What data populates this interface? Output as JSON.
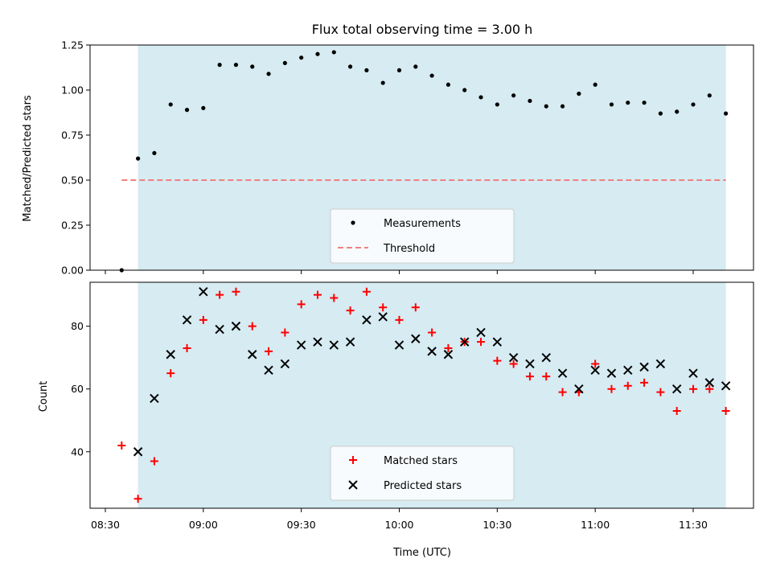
{
  "chart_data": {
    "title": "Flux total observing time = 3.00 h",
    "xlabel": "Time (UTC)",
    "x_ticks": [
      "08:30",
      "09:00",
      "09:30",
      "10:00",
      "10:30",
      "11:00",
      "11:30"
    ],
    "observing_window": {
      "start": "08:40",
      "end": "11:40",
      "color": "#add8e6"
    },
    "panels": [
      {
        "type": "scatter",
        "ylabel": "Matched/Predicted stars",
        "ylim": [
          0,
          1.25
        ],
        "y_ticks": [
          "0.00",
          "0.25",
          "0.50",
          "0.75",
          "1.00",
          "1.25"
        ],
        "legend": "bottom-center",
        "series": [
          {
            "name": "Measurements",
            "marker": "dot",
            "color": "#000000",
            "x": [
              "08:35",
              "08:40",
              "08:45",
              "08:50",
              "08:55",
              "09:00",
              "09:05",
              "09:10",
              "09:15",
              "09:20",
              "09:25",
              "09:30",
              "09:35",
              "09:40",
              "09:45",
              "09:50",
              "09:55",
              "10:00",
              "10:05",
              "10:10",
              "10:15",
              "10:20",
              "10:25",
              "10:30",
              "10:35",
              "10:40",
              "10:45",
              "10:50",
              "10:55",
              "11:00",
              "11:05",
              "11:10",
              "11:15",
              "11:20",
              "11:25",
              "11:30",
              "11:35",
              "11:40"
            ],
            "y": [
              0.0,
              0.62,
              0.65,
              0.92,
              0.89,
              0.9,
              1.14,
              1.14,
              1.13,
              1.09,
              1.15,
              1.18,
              1.2,
              1.21,
              1.13,
              1.11,
              1.04,
              1.11,
              1.13,
              1.08,
              1.03,
              1.0,
              0.96,
              0.92,
              0.97,
              0.94,
              0.91,
              0.91,
              0.98,
              1.03,
              0.92,
              0.93,
              0.93,
              0.87,
              0.88,
              0.92,
              0.97,
              0.87
            ]
          },
          {
            "name": "Threshold",
            "marker": "dashed-line",
            "color": "#f08080",
            "x": [
              "08:35",
              "11:40"
            ],
            "y": [
              0.5,
              0.5
            ]
          }
        ]
      },
      {
        "type": "scatter",
        "ylabel": "Count",
        "ylim": [
          22,
          94
        ],
        "y_ticks": [
          "40",
          "60",
          "80"
        ],
        "legend": "bottom-center",
        "series": [
          {
            "name": "Matched stars",
            "marker": "plus",
            "color": "#ff0000",
            "x": [
              "08:35",
              "08:40",
              "08:45",
              "08:50",
              "08:55",
              "09:00",
              "09:05",
              "09:10",
              "09:15",
              "09:20",
              "09:25",
              "09:30",
              "09:35",
              "09:40",
              "09:45",
              "09:50",
              "09:55",
              "10:00",
              "10:05",
              "10:10",
              "10:15",
              "10:20",
              "10:25",
              "10:30",
              "10:35",
              "10:40",
              "10:45",
              "10:50",
              "10:55",
              "11:00",
              "11:05",
              "11:10",
              "11:15",
              "11:20",
              "11:25",
              "11:30",
              "11:35",
              "11:40"
            ],
            "y": [
              42,
              25,
              37,
              65,
              73,
              82,
              90,
              91,
              80,
              72,
              78,
              87,
              90,
              89,
              85,
              91,
              86,
              82,
              86,
              78,
              73,
              75,
              75,
              69,
              68,
              64,
              64,
              59,
              59,
              68,
              60,
              61,
              62,
              59,
              53,
              60,
              60,
              53
            ]
          },
          {
            "name": "Predicted stars",
            "marker": "x",
            "color": "#000000",
            "x": [
              "08:40",
              "08:45",
              "08:50",
              "08:55",
              "09:00",
              "09:05",
              "09:10",
              "09:15",
              "09:20",
              "09:25",
              "09:30",
              "09:35",
              "09:40",
              "09:45",
              "09:50",
              "09:55",
              "10:00",
              "10:05",
              "10:10",
              "10:15",
              "10:20",
              "10:25",
              "10:30",
              "10:35",
              "10:40",
              "10:45",
              "10:50",
              "10:55",
              "11:00",
              "11:05",
              "11:10",
              "11:15",
              "11:20",
              "11:25",
              "11:30",
              "11:35",
              "11:40"
            ],
            "y": [
              40,
              57,
              71,
              82,
              91,
              79,
              80,
              71,
              66,
              68,
              74,
              75,
              74,
              75,
              82,
              83,
              74,
              76,
              72,
              71,
              75,
              78,
              75,
              70,
              68,
              70,
              65,
              60,
              66,
              65,
              66,
              67,
              68,
              60,
              65,
              62,
              61
            ]
          }
        ]
      }
    ]
  }
}
